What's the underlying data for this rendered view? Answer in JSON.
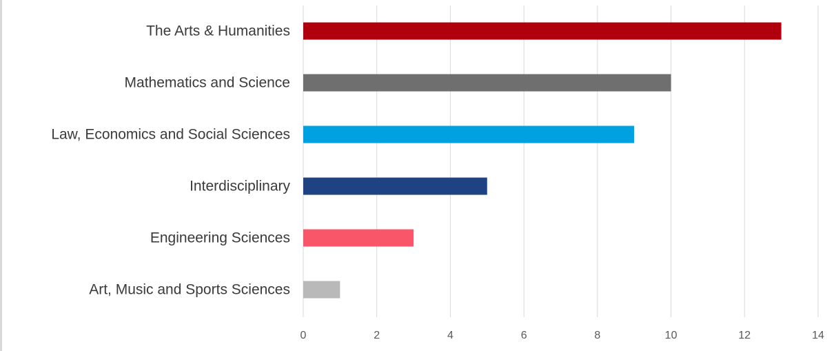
{
  "chart_data": {
    "type": "bar",
    "orientation": "horizontal",
    "title": "",
    "xlabel": "",
    "ylabel": "",
    "categories": [
      "The Arts & Humanities",
      "Mathematics and Science",
      "Law, Economics and Social Sciences",
      "Interdisciplinary",
      "Engineering Sciences",
      "Art, Music and Sports Sciences"
    ],
    "values": [
      13,
      10,
      9,
      5,
      3,
      1
    ],
    "colors": [
      "#b0000e",
      "#6f6f6f",
      "#00a1e0",
      "#1e4282",
      "#f9566a",
      "#b9b9b9"
    ],
    "xlim": [
      0,
      14
    ],
    "xticks": [
      "0",
      "2",
      "4",
      "6",
      "8",
      "10",
      "12",
      "14"
    ],
    "grid": "vertical",
    "legend": "none"
  }
}
